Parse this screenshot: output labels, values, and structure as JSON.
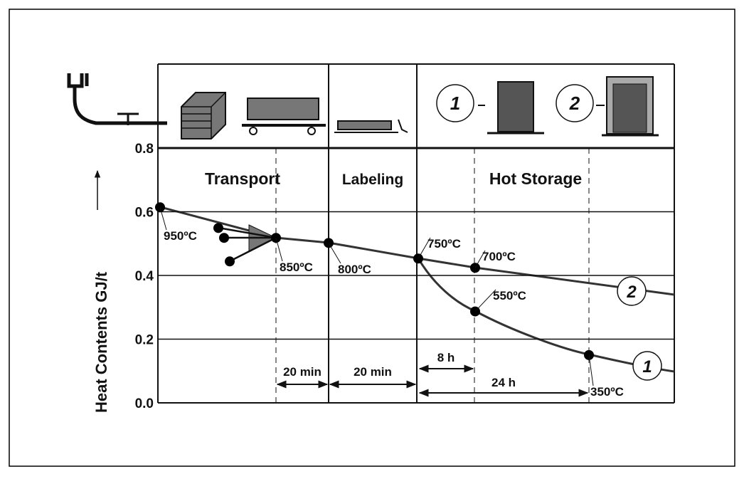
{
  "y_axis": {
    "title": "Heat Contents GJ/t",
    "range": [
      0,
      0.8
    ],
    "ticks": [
      {
        "value": 0,
        "label": "0.0"
      },
      0.2,
      0.4,
      0.6,
      0.8
    ]
  },
  "sections": [
    "Transport",
    "Labeling",
    "Hot Storage"
  ],
  "storage_icons": [
    "1",
    "2"
  ],
  "curve_labels": [
    "2",
    "1"
  ],
  "points": [
    {
      "heat": 0.614,
      "label": "950ºC"
    },
    {
      "heat": 0.549
    },
    {
      "heat": 0.518
    },
    {
      "heat": 0.444
    },
    {
      "heat": 0.518,
      "label": "850ºC"
    },
    {
      "heat": 0.502,
      "label": "800ºC"
    },
    {
      "heat": 0.453,
      "label": "750ºC"
    },
    {
      "heat": 0.424,
      "label": "700ºC"
    },
    {
      "heat": 0.287,
      "label": "550ºC"
    },
    {
      "heat": 0.15,
      "label": "350ºC"
    }
  ],
  "durations": [
    "20 min",
    "20 min",
    "8 h",
    "24 h"
  ]
}
